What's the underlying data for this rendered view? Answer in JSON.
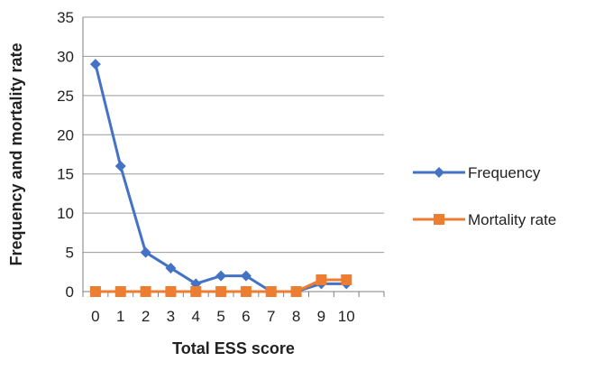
{
  "chart_data": {
    "type": "line",
    "title": "",
    "xlabel": "Total ESS score",
    "ylabel": "Frequency and mortality rate",
    "categories": [
      "0",
      "1",
      "2",
      "3",
      "4",
      "5",
      "6",
      "7",
      "8",
      "9",
      "10"
    ],
    "ylim": [
      0,
      35
    ],
    "yticks": [
      "0",
      "5",
      "10",
      "15",
      "20",
      "25",
      "30",
      "35"
    ],
    "grid": true,
    "legend_position": "right",
    "series": [
      {
        "name": "Frequency",
        "values": [
          29,
          16,
          5,
          3,
          1,
          2,
          2,
          0,
          0,
          1,
          1
        ],
        "color": "#4472C4",
        "marker": "diamond"
      },
      {
        "name": "Mortality rate",
        "values": [
          0,
          0,
          0,
          0,
          0,
          0,
          0,
          0,
          0,
          1.5,
          1.5
        ],
        "color": "#ED7D31",
        "marker": "square"
      }
    ]
  }
}
